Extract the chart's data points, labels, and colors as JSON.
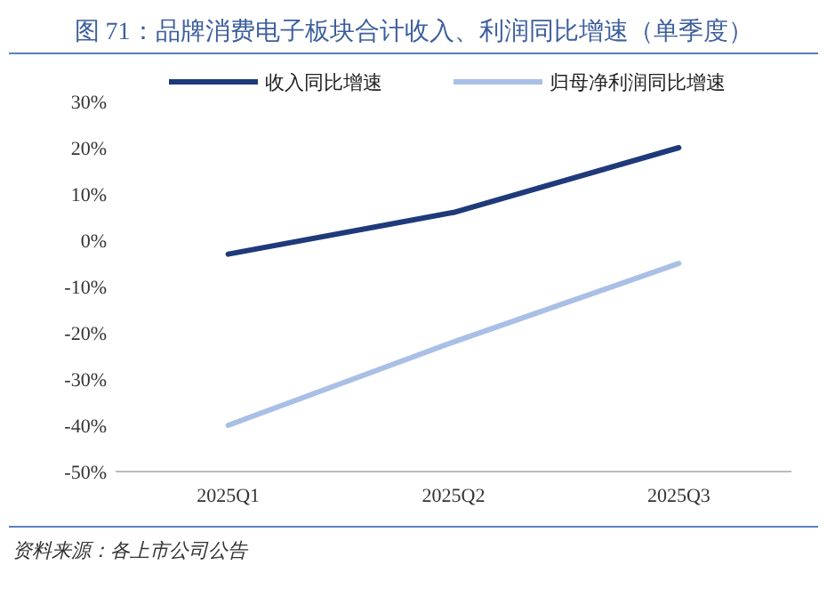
{
  "chart_data": {
    "type": "line",
    "title": "图 71：品牌消费电子板块合计收入、利润同比增速（单季度）",
    "categories": [
      "2025Q1",
      "2025Q2",
      "2025Q3"
    ],
    "series": [
      {
        "name": "收入同比增速",
        "color": "#1f3a7a",
        "values": [
          -3,
          6,
          20
        ]
      },
      {
        "name": "归母净利润同比增速",
        "color": "#a9bfe6",
        "values": [
          -40,
          -22,
          -5
        ]
      }
    ],
    "ylim": [
      -50,
      30
    ],
    "yticks": [
      {
        "value": -50,
        "label": "-50%"
      },
      {
        "value": -40,
        "label": "-40%"
      },
      {
        "value": -30,
        "label": "-30%"
      },
      {
        "value": -20,
        "label": "-20%"
      },
      {
        "value": -10,
        "label": "-10%"
      },
      {
        "value": 0,
        "label": "0%"
      },
      {
        "value": 10,
        "label": "10%"
      },
      {
        "value": 20,
        "label": "20%"
      },
      {
        "value": 30,
        "label": "30%"
      }
    ],
    "grid": false,
    "legend": "top",
    "annotations": [
      "资料来源：各上市公司公告"
    ]
  }
}
